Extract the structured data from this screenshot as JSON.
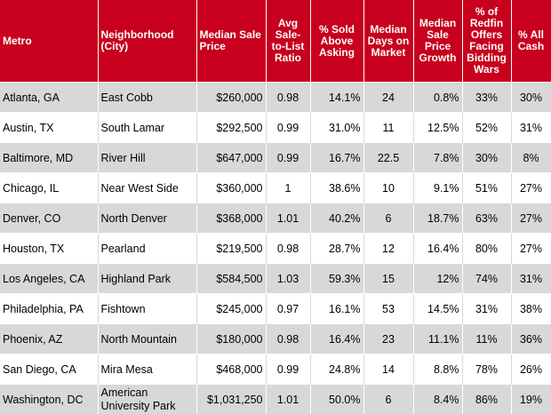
{
  "headers": [
    "Metro",
    "Neighborhood (City)",
    "Median Sale Price",
    "Avg Sale-to-List Ratio",
    "% Sold Above Asking",
    "Median Days on Market",
    "Median Sale Price Growth",
    "% of Redfin Offers Facing Bidding Wars",
    "% All Cash"
  ],
  "rows": [
    [
      "Atlanta, GA",
      "East Cobb",
      "$260,000",
      "0.98",
      "14.1%",
      "24",
      "0.8%",
      "33%",
      "30%"
    ],
    [
      "Austin, TX",
      "South Lamar",
      "$292,500",
      "0.99",
      "31.0%",
      "11",
      "12.5%",
      "52%",
      "31%"
    ],
    [
      "Baltimore, MD",
      "River Hill",
      "$647,000",
      "0.99",
      "16.7%",
      "22.5",
      "7.8%",
      "30%",
      "8%"
    ],
    [
      "Chicago, IL",
      "Near West Side",
      "$360,000",
      "1",
      "38.6%",
      "10",
      "9.1%",
      "51%",
      "27%"
    ],
    [
      "Denver, CO",
      "North Denver",
      "$368,000",
      "1.01",
      "40.2%",
      "6",
      "18.7%",
      "63%",
      "27%"
    ],
    [
      "Houston, TX",
      "Pearland",
      "$219,500",
      "0.98",
      "28.7%",
      "12",
      "16.4%",
      "80%",
      "27%"
    ],
    [
      "Los Angeles, CA",
      "Highland Park",
      "$584,500",
      "1.03",
      "59.3%",
      "15",
      "12%",
      "74%",
      "31%"
    ],
    [
      "Philadelphia, PA",
      "Fishtown",
      "$245,000",
      "0.97",
      "16.1%",
      "53",
      "14.5%",
      "31%",
      "38%"
    ],
    [
      "Phoenix, AZ",
      "North Mountain",
      "$180,000",
      "0.98",
      "16.4%",
      "23",
      "11.1%",
      "11%",
      "36%"
    ],
    [
      "San Diego, CA",
      "Mira Mesa",
      "$468,000",
      "0.99",
      "24.8%",
      "14",
      "8.8%",
      "78%",
      "26%"
    ],
    [
      "Washington, DC",
      "American University Park",
      "$1,031,250",
      "1.01",
      "50.0%",
      "6",
      "8.4%",
      "86%",
      "19%"
    ]
  ],
  "colors": {
    "header_bg": "#c8001e",
    "header_text": "#ffffff",
    "row_shade": "#d8d8d8",
    "row_plain": "#ffffff"
  }
}
